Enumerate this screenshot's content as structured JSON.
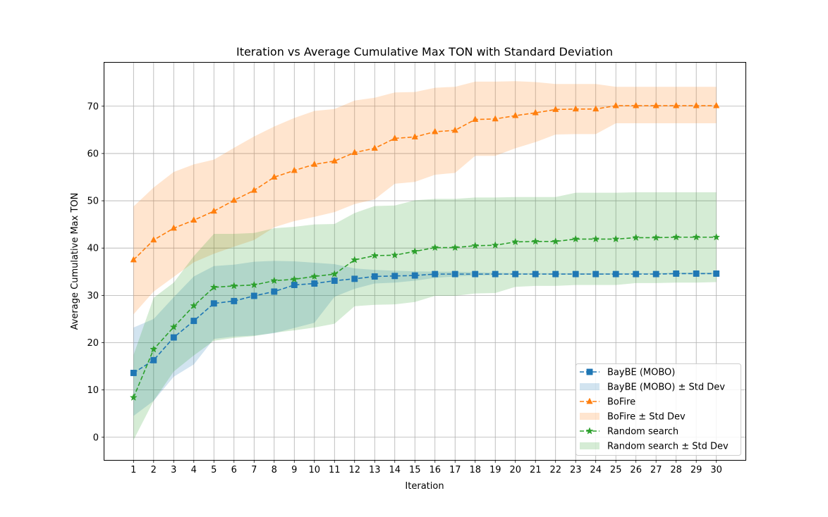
{
  "chart_data": {
    "type": "line",
    "title": "Iteration vs Average Cumulative Max TON with Standard Deviation",
    "xlabel": "Iteration",
    "ylabel": "Average Cumulative Max TON",
    "x": [
      1,
      2,
      3,
      4,
      5,
      6,
      7,
      8,
      9,
      10,
      11,
      12,
      13,
      14,
      15,
      16,
      17,
      18,
      19,
      20,
      21,
      22,
      23,
      24,
      25,
      26,
      27,
      28,
      29,
      30
    ],
    "xlim": [
      -0.45,
      31.45
    ],
    "ylim": [
      -4.8,
      79.2
    ],
    "xticks": [
      1,
      2,
      3,
      4,
      5,
      6,
      7,
      8,
      9,
      10,
      11,
      12,
      13,
      14,
      15,
      16,
      17,
      18,
      19,
      20,
      21,
      22,
      23,
      24,
      25,
      26,
      27,
      28,
      29,
      30
    ],
    "yticks": [
      0,
      10,
      20,
      30,
      40,
      50,
      60,
      70
    ],
    "grid": true,
    "legend_position": "lower right",
    "series": [
      {
        "name": "BayBE (MOBO)",
        "band_name": "BayBE (MOBO) ± Std Dev",
        "color": "#1f77b4",
        "marker": "square",
        "values": [
          13.6,
          16.3,
          21.1,
          24.6,
          28.3,
          28.8,
          29.9,
          30.8,
          32.2,
          32.5,
          33.1,
          33.5,
          34.0,
          34.1,
          34.2,
          34.5,
          34.5,
          34.5,
          34.5,
          34.5,
          34.5,
          34.5,
          34.5,
          34.5,
          34.5,
          34.5,
          34.5,
          34.6,
          34.6,
          34.6
        ],
        "lower": [
          4.5,
          7.7,
          12.8,
          15.4,
          20.8,
          21.3,
          21.5,
          22.0,
          23.1,
          24.2,
          29.7,
          31.4,
          32.5,
          32.7,
          33.1,
          33.7,
          34.0,
          34.2,
          34.3,
          34.4,
          34.4,
          34.4,
          34.4,
          34.4,
          34.4,
          34.5,
          34.5,
          34.5,
          34.5,
          34.5
        ],
        "upper": [
          23.2,
          25.0,
          29.6,
          34.0,
          36.2,
          36.5,
          37.1,
          37.3,
          37.2,
          36.9,
          36.6,
          35.7,
          35.4,
          35.2,
          35.1,
          35.0,
          35.0,
          34.9,
          34.8,
          34.7,
          34.7,
          34.7,
          34.7,
          34.7,
          34.7,
          34.7,
          34.7,
          34.8,
          34.8,
          34.8
        ]
      },
      {
        "name": "BoFire",
        "band_name": "BoFire ± Std Dev",
        "color": "#ff7f0e",
        "marker": "triangle",
        "values": [
          37.5,
          41.7,
          44.2,
          45.9,
          47.8,
          50.1,
          52.2,
          55.0,
          56.4,
          57.7,
          58.4,
          60.2,
          61.1,
          63.2,
          63.5,
          64.6,
          64.9,
          67.2,
          67.3,
          68.0,
          68.6,
          69.3,
          69.4,
          69.4,
          70.1,
          70.1,
          70.1,
          70.1,
          70.1,
          70.1
        ],
        "lower": [
          26.0,
          30.8,
          33.9,
          37.0,
          38.8,
          40.3,
          41.7,
          44.4,
          45.7,
          46.6,
          47.6,
          49.3,
          50.3,
          53.6,
          54.0,
          55.5,
          55.9,
          59.5,
          59.5,
          61.1,
          62.4,
          64.0,
          64.1,
          64.1,
          66.4,
          66.4,
          66.4,
          66.4,
          66.4,
          66.4
        ],
        "upper": [
          48.8,
          52.8,
          56.1,
          57.7,
          58.7,
          61.2,
          63.6,
          65.7,
          67.5,
          69.0,
          69.4,
          71.2,
          71.8,
          72.9,
          73.0,
          73.9,
          74.1,
          75.2,
          75.2,
          75.3,
          75.1,
          74.7,
          74.7,
          74.7,
          74.1,
          74.1,
          74.1,
          74.1,
          74.1,
          74.1
        ]
      },
      {
        "name": "Random search",
        "band_name": "Random search ± Std Dev",
        "color": "#2ca02c",
        "marker": "star",
        "values": [
          8.4,
          18.6,
          23.3,
          27.8,
          31.7,
          32.0,
          32.2,
          33.1,
          33.4,
          34.0,
          34.5,
          37.5,
          38.4,
          38.5,
          39.3,
          40.1,
          40.1,
          40.5,
          40.6,
          41.3,
          41.4,
          41.4,
          41.9,
          41.9,
          41.9,
          42.2,
          42.2,
          42.3,
          42.3,
          42.3
        ],
        "lower": [
          -0.6,
          7.7,
          13.9,
          17.3,
          20.4,
          21.0,
          21.4,
          22.1,
          22.6,
          23.2,
          24.0,
          27.7,
          28.0,
          28.1,
          28.6,
          29.9,
          29.9,
          30.4,
          30.5,
          31.8,
          32.0,
          32.0,
          32.2,
          32.2,
          32.2,
          32.6,
          32.6,
          32.7,
          32.7,
          32.8
        ],
        "upper": [
          17.4,
          29.5,
          32.7,
          38.3,
          43.0,
          43.0,
          43.2,
          44.2,
          44.5,
          45.0,
          45.1,
          47.4,
          48.9,
          49.0,
          50.1,
          50.4,
          50.4,
          50.7,
          50.7,
          50.8,
          50.8,
          50.8,
          51.7,
          51.7,
          51.7,
          51.8,
          51.8,
          51.8,
          51.8,
          51.8
        ]
      }
    ]
  }
}
